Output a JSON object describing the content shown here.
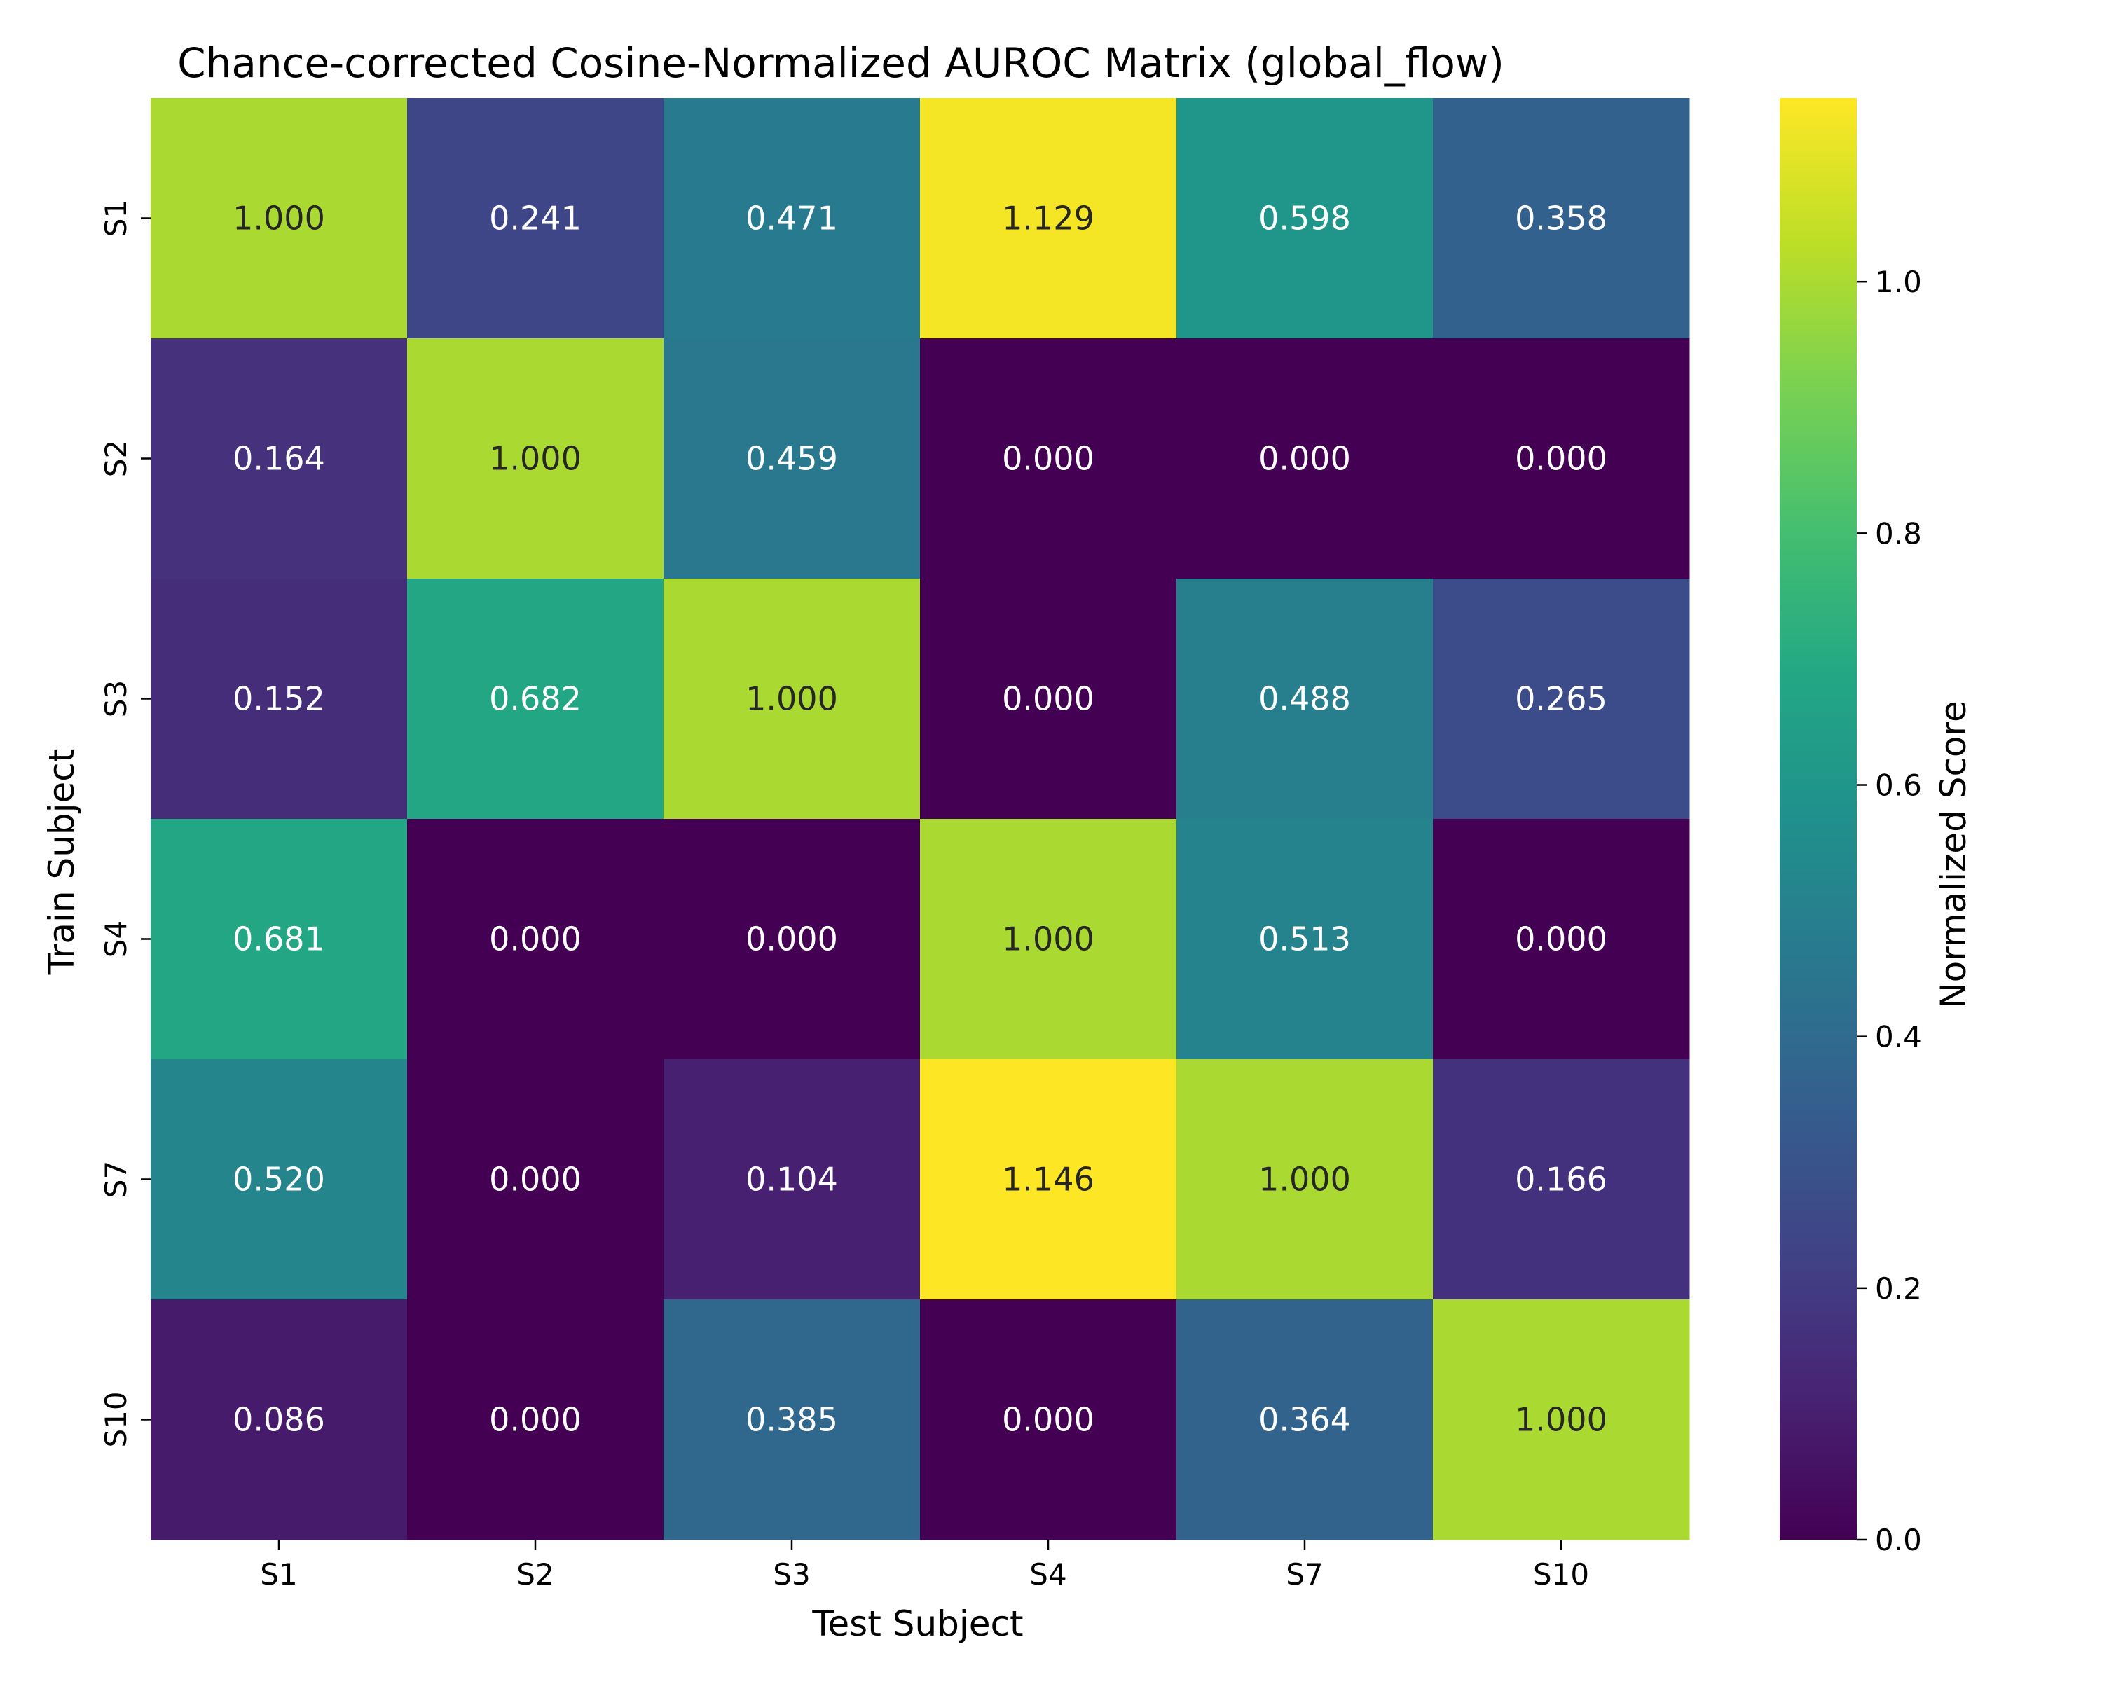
{
  "chart_data": {
    "type": "heatmap",
    "title": "Chance-corrected Cosine-Normalized AUROC Matrix (global_flow)",
    "xlabel": "Test Subject",
    "ylabel": "Train Subject",
    "x_categories": [
      "S1",
      "S2",
      "S3",
      "S4",
      "S7",
      "S10"
    ],
    "y_categories": [
      "S1",
      "S2",
      "S3",
      "S4",
      "S7",
      "S10"
    ],
    "values": [
      [
        1.0,
        0.241,
        0.471,
        1.129,
        0.598,
        0.358
      ],
      [
        0.164,
        1.0,
        0.459,
        0.0,
        0.0,
        0.0
      ],
      [
        0.152,
        0.682,
        1.0,
        0.0,
        0.488,
        0.265
      ],
      [
        0.681,
        0.0,
        0.0,
        1.0,
        0.513,
        0.0
      ],
      [
        0.52,
        0.0,
        0.104,
        1.146,
        1.0,
        0.166
      ],
      [
        0.086,
        0.0,
        0.385,
        0.0,
        0.364,
        1.0
      ]
    ],
    "value_labels": [
      [
        "1.000",
        "0.241",
        "0.471",
        "1.129",
        "0.598",
        "0.358"
      ],
      [
        "0.164",
        "1.000",
        "0.459",
        "0.000",
        "0.000",
        "0.000"
      ],
      [
        "0.152",
        "0.682",
        "1.000",
        "0.000",
        "0.488",
        "0.265"
      ],
      [
        "0.681",
        "0.000",
        "0.000",
        "1.000",
        "0.513",
        "0.000"
      ],
      [
        "0.520",
        "0.000",
        "0.104",
        "1.146",
        "1.000",
        "0.166"
      ],
      [
        "0.086",
        "0.000",
        "0.385",
        "0.000",
        "0.364",
        "1.000"
      ]
    ],
    "colormap": "viridis",
    "color_range": [
      0.0,
      1.146
    ],
    "colorbar": {
      "label": "Normalized Score",
      "ticks": [
        0.0,
        0.2,
        0.4,
        0.6,
        0.8,
        1.0
      ],
      "tick_labels": [
        "0.0",
        "0.2",
        "0.4",
        "0.6",
        "0.8",
        "1.0"
      ]
    },
    "grid": false
  }
}
